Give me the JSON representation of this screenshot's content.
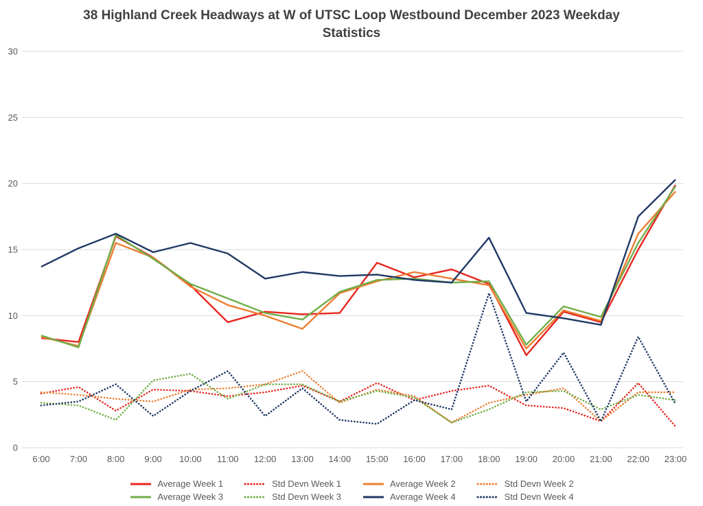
{
  "chart_data": {
    "type": "line",
    "title": "38 Highland Creek Headways at W of UTSC Loop Westbound December 2023 Weekday Statistics",
    "title_lines": [
      "38 Highland Creek Headways at W of UTSC Loop Westbound December 2023 Weekday",
      "Statistics"
    ],
    "xlabel": "",
    "ylabel": "",
    "ylim": [
      0,
      30
    ],
    "yticks": [
      0,
      5,
      10,
      15,
      20,
      25,
      30
    ],
    "grid": true,
    "legend_position": "bottom",
    "colors": {
      "grid": "#d9d9d9",
      "axis_text": "#595959",
      "title_text": "#404040",
      "week1": "#e8251f",
      "week2": "#ed7d31",
      "week3": "#70ad47",
      "week4": "#1f3864"
    },
    "categories": [
      "6:00",
      "7:00",
      "8:00",
      "9:00",
      "10:00",
      "11:00",
      "12:00",
      "13:00",
      "14:00",
      "15:00",
      "16:00",
      "17:00",
      "18:00",
      "19:00",
      "20:00",
      "21:00",
      "22:00",
      "23:00"
    ],
    "series": [
      {
        "name": "Average Week 1",
        "color": "#e8251f",
        "style": "solid",
        "values": [
          8.3,
          8.0,
          16.0,
          14.4,
          12.3,
          9.5,
          10.3,
          10.1,
          10.2,
          14.0,
          12.9,
          13.5,
          12.4,
          7.0,
          10.3,
          9.5,
          15.0,
          19.9
        ]
      },
      {
        "name": "Std Devn Week 1",
        "color": "#e8251f",
        "style": "dotted",
        "values": [
          4.1,
          4.6,
          2.8,
          4.4,
          4.3,
          3.9,
          4.2,
          4.7,
          3.5,
          4.9,
          3.6,
          4.3,
          4.7,
          3.2,
          3.0,
          2.0,
          4.9,
          1.6
        ]
      },
      {
        "name": "Average Week 2",
        "color": "#ed7d31",
        "style": "solid",
        "values": [
          8.4,
          7.7,
          15.5,
          14.4,
          12.2,
          10.8,
          10.0,
          9.0,
          11.7,
          12.6,
          13.3,
          12.8,
          12.3,
          7.5,
          10.4,
          9.6,
          16.2,
          19.4
        ]
      },
      {
        "name": "Std Devn Week 2",
        "color": "#ed7d31",
        "style": "dotted",
        "values": [
          4.2,
          4.0,
          3.7,
          3.5,
          4.4,
          4.5,
          4.8,
          5.8,
          3.4,
          4.4,
          3.9,
          1.9,
          3.4,
          4.0,
          4.5,
          2.0,
          4.2,
          4.2
        ]
      },
      {
        "name": "Average Week 3",
        "color": "#70ad47",
        "style": "solid",
        "values": [
          8.5,
          7.6,
          16.1,
          14.3,
          12.4,
          11.3,
          10.2,
          9.7,
          11.8,
          12.7,
          12.8,
          12.5,
          12.6,
          7.8,
          10.7,
          9.9,
          15.5,
          19.8
        ]
      },
      {
        "name": "Std Devn Week 3",
        "color": "#70ad47",
        "style": "dotted",
        "values": [
          3.4,
          3.2,
          2.1,
          5.1,
          5.6,
          3.7,
          4.8,
          4.8,
          3.5,
          4.3,
          3.8,
          1.9,
          2.9,
          4.2,
          4.3,
          2.9,
          4.0,
          3.6
        ]
      },
      {
        "name": "Average Week 4",
        "color": "#1f3864",
        "style": "solid",
        "values": [
          13.7,
          15.1,
          16.2,
          14.8,
          15.5,
          14.7,
          12.8,
          13.3,
          13.0,
          13.1,
          12.7,
          12.5,
          15.9,
          10.2,
          9.8,
          9.3,
          17.5,
          20.3
        ]
      },
      {
        "name": "Std Devn Week 4",
        "color": "#1f3864",
        "style": "dotted",
        "values": [
          3.2,
          3.5,
          4.8,
          2.4,
          4.3,
          5.8,
          2.4,
          4.5,
          2.1,
          1.8,
          3.6,
          2.9,
          11.7,
          3.5,
          7.2,
          2.0,
          8.4,
          3.3
        ]
      }
    ]
  }
}
